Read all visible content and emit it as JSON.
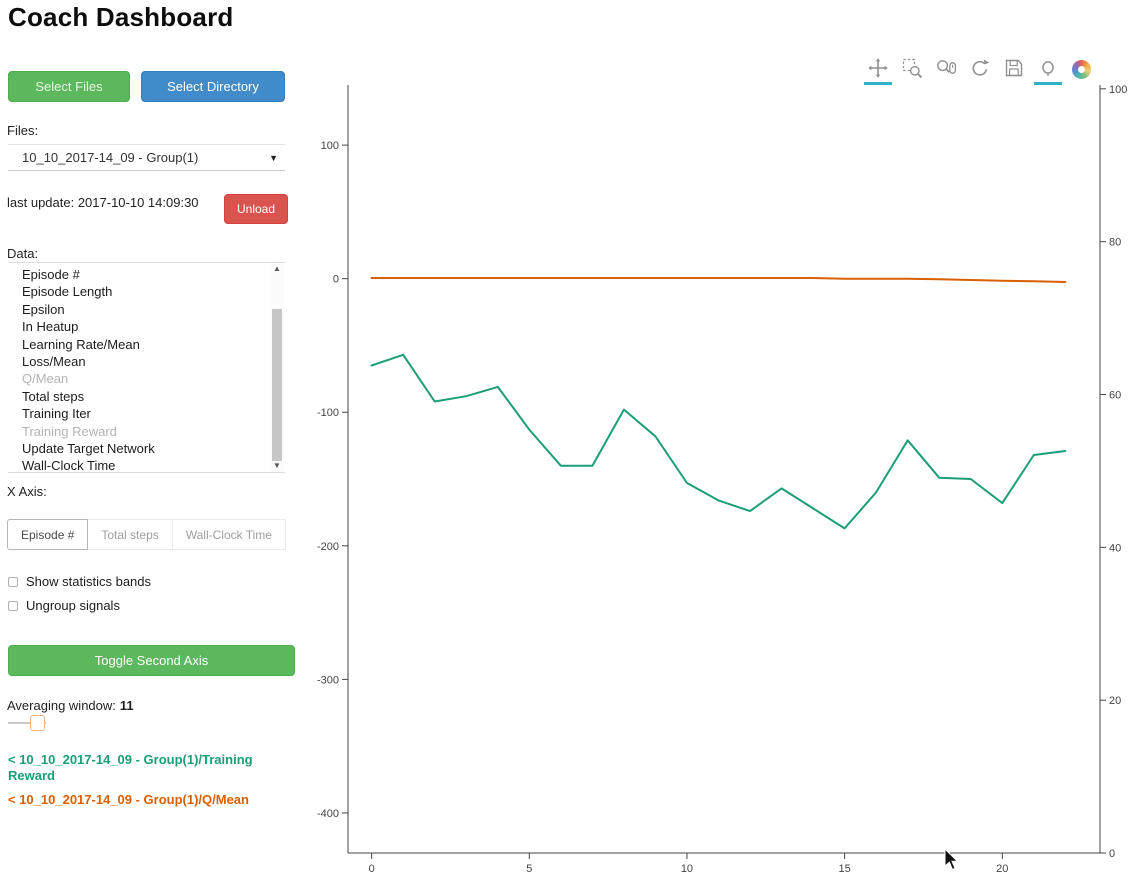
{
  "app": {
    "title": "Coach Dashboard"
  },
  "sidebar": {
    "select_files_label": "Select Files",
    "select_directory_label": "Select Directory",
    "files_label": "Files:",
    "files_selected": "10_10_2017-14_09 - Group(1)",
    "last_update": "last update: 2017-10-10 14:09:30",
    "unload_label": "Unload",
    "data_label": "Data:",
    "data_items": [
      {
        "label": "Episode #",
        "dimmed": false
      },
      {
        "label": "Episode Length",
        "dimmed": false
      },
      {
        "label": "Epsilon",
        "dimmed": false
      },
      {
        "label": "In Heatup",
        "dimmed": false
      },
      {
        "label": "Learning Rate/Mean",
        "dimmed": false
      },
      {
        "label": "Loss/Mean",
        "dimmed": false
      },
      {
        "label": "Q/Mean",
        "dimmed": true
      },
      {
        "label": "Total steps",
        "dimmed": false
      },
      {
        "label": "Training Iter",
        "dimmed": false
      },
      {
        "label": "Training Reward",
        "dimmed": true
      },
      {
        "label": "Update Target Network",
        "dimmed": false
      },
      {
        "label": "Wall-Clock Time",
        "dimmed": false
      }
    ],
    "x_axis_label": "X Axis:",
    "x_axis_options": [
      {
        "label": "Episode #",
        "active": true
      },
      {
        "label": "Total steps",
        "active": false
      },
      {
        "label": "Wall-Clock Time",
        "active": false
      }
    ],
    "checkboxes": [
      {
        "label": "Show statistics bands",
        "checked": false
      },
      {
        "label": "Ungroup signals",
        "checked": false
      }
    ],
    "toggle_second_axis_label": "Toggle Second Axis",
    "averaging_window_label": "Averaging window:",
    "averaging_window_value": "11",
    "legend": [
      {
        "label": "< 10_10_2017-14_09 - Group(1)/Training Reward",
        "color": "#1b9e77"
      },
      {
        "label": "< 10_10_2017-14_09 - Group(1)/Q/Mean",
        "color": "#d95f02"
      }
    ]
  },
  "toolbar": {
    "tools": [
      {
        "name": "pan",
        "active": true
      },
      {
        "name": "box-zoom",
        "active": false
      },
      {
        "name": "wheel-zoom",
        "active": false
      },
      {
        "name": "reset",
        "active": false
      },
      {
        "name": "save",
        "active": false
      },
      {
        "name": "hover",
        "active": true
      }
    ]
  },
  "colors": {
    "button_green": "#5cb85c",
    "button_blue": "#428bca",
    "button_red": "#d9534f",
    "series_teal": "#1b9e77",
    "series_orange": "#d95f02",
    "toolbar_active_underline": "#30b3c7"
  },
  "chart_data": {
    "type": "line",
    "title": "",
    "xlabel": "",
    "ylabel": "",
    "grid": false,
    "legend_position": "external-left-panel",
    "x_range": [
      -0.75,
      23.1
    ],
    "y_left_range": [
      -430,
      145
    ],
    "y_right_range": [
      0,
      100.5
    ],
    "x_ticks": [
      0,
      5,
      10,
      15,
      20
    ],
    "y_left_ticks": [
      100,
      0,
      -100,
      -200,
      -300,
      -400
    ],
    "y_right_ticks": [
      100,
      80,
      60,
      40,
      20,
      0
    ],
    "series": [
      {
        "name": "10_10_2017-14_09 - Group(1)/Training Reward",
        "color": "#1b9e77",
        "axis": "left",
        "x": [
          0,
          1,
          2,
          3,
          4,
          5,
          6,
          7,
          8,
          9,
          10,
          11,
          12,
          13,
          14,
          15,
          16,
          17,
          18,
          19,
          20,
          21,
          22
        ],
        "y": [
          -65,
          -57,
          -92,
          -88,
          -81,
          -113,
          -140,
          -140,
          -98,
          -118,
          -153,
          -166,
          -174,
          -157,
          -172,
          -187,
          -160,
          -121,
          -149,
          -150,
          -168,
          -132,
          -129
        ]
      },
      {
        "name": "10_10_2017-14_09 - Group(1)/Q/Mean",
        "color": "#d95f02",
        "axis": "left",
        "x": [
          0,
          1,
          2,
          3,
          4,
          5,
          6,
          7,
          8,
          9,
          10,
          11,
          12,
          13,
          14,
          15,
          16,
          17,
          18,
          19,
          20,
          21,
          22
        ],
        "y": [
          0.5,
          0.5,
          0.5,
          0.5,
          0.5,
          0.5,
          0.5,
          0.5,
          0.5,
          0.5,
          0.5,
          0.5,
          0.5,
          0.5,
          0.5,
          0,
          0,
          0,
          -0.5,
          -1,
          -1.5,
          -2,
          -2.5
        ]
      }
    ]
  }
}
